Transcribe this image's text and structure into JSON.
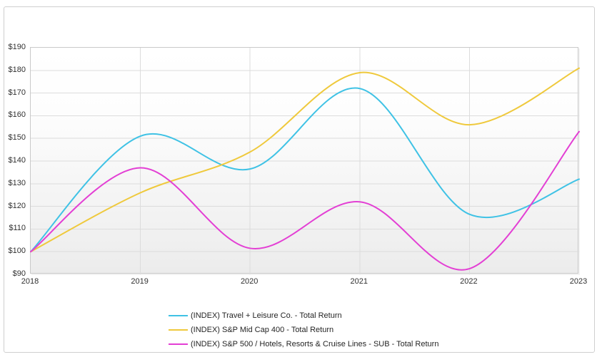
{
  "chart_data": {
    "type": "line",
    "title": "",
    "x": [
      2018,
      2019,
      2020,
      2021,
      2022,
      2023
    ],
    "x_tick_labels": [
      "2018",
      "2019",
      "2020",
      "2021",
      "2022",
      "2023"
    ],
    "y_tick_labels": [
      "$190",
      "$180",
      "$170",
      "$160",
      "$150",
      "$140",
      "$130",
      "$120",
      "$110",
      "$100",
      "$90"
    ],
    "ylim": [
      90,
      190
    ],
    "ytick_step": 10,
    "y_prefix": "$",
    "grid": true,
    "smoothing": "spline",
    "legend_position": "bottom-left",
    "series": [
      {
        "name": "(INDEX) Travel + Leisure Co. - Total Return",
        "color": "#3fc2e5",
        "values": [
          100,
          151,
          136.5,
          172,
          116.5,
          132
        ]
      },
      {
        "name": "(INDEX) S&P Mid Cap 400 - Total Return",
        "color": "#efc93c",
        "values": [
          100,
          126,
          144,
          179,
          156,
          181
        ]
      },
      {
        "name": "(INDEX) S&P 500 / Hotels, Resorts & Cruise Lines - SUB - Total Return",
        "color": "#e33fd4",
        "values": [
          100,
          137,
          101.5,
          122,
          92.5,
          153
        ]
      }
    ],
    "colors": {
      "grid": "#dcdcdc",
      "plot_border": "#c9c9c9",
      "card_border": "#cfcfcf",
      "tick_text": "#303030"
    }
  }
}
